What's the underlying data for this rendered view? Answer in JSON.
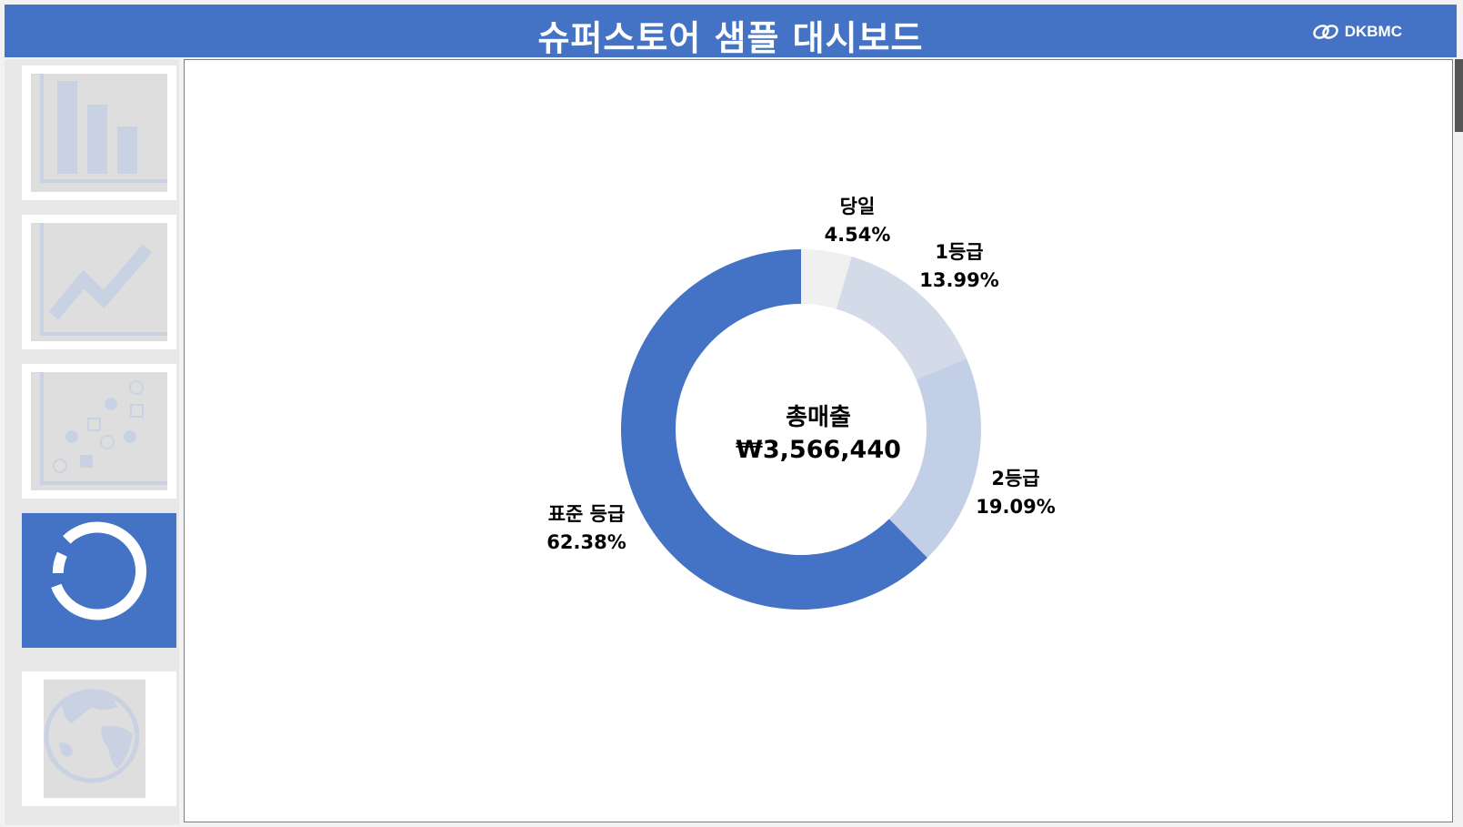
{
  "header": {
    "title": "슈퍼스토어 샘플 대시보드",
    "brand": "DKBMC",
    "color": "#4472c4"
  },
  "sidebar": {
    "items": [
      {
        "icon": "bar-chart-icon",
        "active": false
      },
      {
        "icon": "line-chart-icon",
        "active": false
      },
      {
        "icon": "scatter-chart-icon",
        "active": false
      },
      {
        "icon": "donut-chart-icon",
        "active": true
      },
      {
        "icon": "globe-icon",
        "active": false
      }
    ]
  },
  "chart_data": {
    "type": "donut",
    "center_title": "총매출",
    "center_value": "₩3,566,440",
    "slices": [
      {
        "name": "당일",
        "value": 4.54,
        "label": "4.54%",
        "color": "#f0f0f0"
      },
      {
        "name": "1등급",
        "value": 13.99,
        "label": "13.99%",
        "color": "#d3dbe9"
      },
      {
        "name": "2등급",
        "value": 19.09,
        "label": "19.09%",
        "color": "#c2cfe6"
      },
      {
        "name": "표준 등급",
        "value": 62.38,
        "label": "62.38%",
        "color": "#4472c4"
      }
    ]
  }
}
